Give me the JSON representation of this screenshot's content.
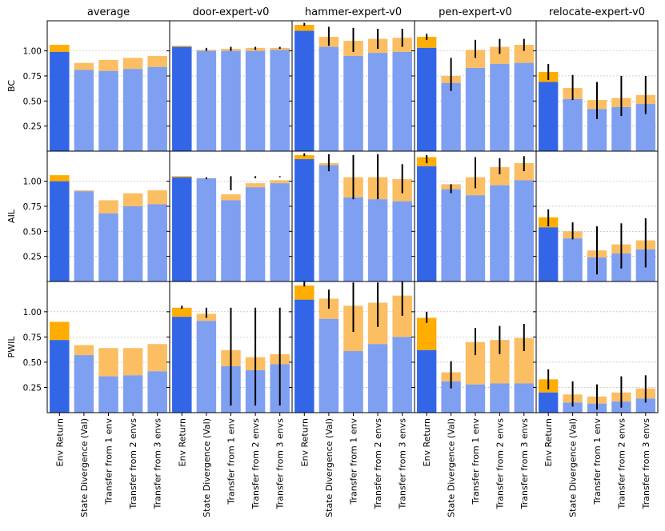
{
  "chart_data": {
    "type": "bar",
    "layout": "grid",
    "columns": [
      "average",
      "door-expert-v0",
      "hammer-expert-v0",
      "pen-expert-v0",
      "relocate-expert-v0"
    ],
    "rows": [
      "BC",
      "AIL",
      "PWIL"
    ],
    "categories": [
      "Env Return",
      "State Divergence (Val)",
      "Transfer from 1 env",
      "Transfer from 2 envs",
      "Transfer from 3 envs"
    ],
    "yticks": [
      0.25,
      0.5,
      0.75,
      1.0
    ],
    "ylim": [
      0,
      1.3
    ],
    "grid": true,
    "stacking": "bottom segment (blue) + top segment (orange) = bar total",
    "colors": {
      "env_bottom": "#3366e6",
      "env_top": "#ffad00",
      "other_bottom": "#7f9ff0",
      "other_top": "#fbbe63",
      "error_bar": "#000000"
    },
    "panels": [
      {
        "row": "BC",
        "column": "average",
        "bottom": [
          0.99,
          0.81,
          0.8,
          0.82,
          0.84
        ],
        "top": [
          1.06,
          0.88,
          0.91,
          0.93,
          0.95
        ],
        "error": [
          null,
          null,
          null,
          null,
          null
        ]
      },
      {
        "row": "BC",
        "column": "door-expert-v0",
        "bottom": [
          1.04,
          1.0,
          1.0,
          1.0,
          1.01
        ],
        "top": [
          1.05,
          1.01,
          1.02,
          1.03,
          1.03
        ],
        "error": [
          null,
          [
            1.0,
            1.03
          ],
          [
            1.0,
            1.04
          ],
          [
            1.01,
            1.04
          ],
          [
            1.02,
            1.04
          ]
        ]
      },
      {
        "row": "BC",
        "column": "hammer-expert-v0",
        "bottom": [
          1.2,
          1.04,
          0.95,
          0.98,
          0.99
        ],
        "top": [
          1.26,
          1.14,
          1.1,
          1.12,
          1.13
        ],
        "error": [
          [
            1.25,
            1.28
          ],
          [
            1.05,
            1.24
          ],
          [
            0.99,
            1.23
          ],
          [
            1.02,
            1.22
          ],
          [
            1.04,
            1.22
          ]
        ]
      },
      {
        "row": "BC",
        "column": "pen-expert-v0",
        "bottom": [
          1.03,
          0.68,
          0.83,
          0.87,
          0.88
        ],
        "top": [
          1.14,
          0.75,
          1.01,
          1.04,
          1.06
        ],
        "error": [
          [
            1.11,
            1.17
          ],
          [
            0.6,
            0.93
          ],
          [
            0.93,
            1.11
          ],
          [
            0.97,
            1.12
          ],
          [
            1.0,
            1.12
          ]
        ]
      },
      {
        "row": "BC",
        "column": "relocate-expert-v0",
        "bottom": [
          0.69,
          0.52,
          0.42,
          0.44,
          0.47
        ],
        "top": [
          0.79,
          0.63,
          0.51,
          0.53,
          0.56
        ],
        "error": [
          [
            0.71,
            0.87
          ],
          [
            0.51,
            0.76
          ],
          [
            0.32,
            0.69
          ],
          [
            0.35,
            0.75
          ],
          [
            0.37,
            0.75
          ]
        ]
      },
      {
        "row": "AIL",
        "column": "average",
        "bottom": [
          1.0,
          0.9,
          0.68,
          0.75,
          0.77
        ],
        "top": [
          1.06,
          0.91,
          0.81,
          0.88,
          0.91
        ],
        "error": [
          null,
          null,
          null,
          null,
          null
        ]
      },
      {
        "row": "AIL",
        "column": "door-expert-v0",
        "bottom": [
          1.04,
          1.03,
          0.81,
          0.94,
          0.98
        ],
        "top": [
          1.05,
          1.03,
          0.87,
          0.98,
          1.01
        ],
        "error": [
          null,
          [
            1.02,
            1.04
          ],
          [
            0.91,
            1.05
          ],
          [
            1.03,
            1.05
          ],
          [
            1.04,
            1.05
          ]
        ]
      },
      {
        "row": "AIL",
        "column": "hammer-expert-v0",
        "bottom": [
          1.22,
          1.16,
          0.84,
          0.82,
          0.8
        ],
        "top": [
          1.26,
          1.18,
          1.04,
          1.04,
          1.02
        ],
        "error": [
          [
            1.25,
            1.28
          ],
          [
            1.1,
            1.27
          ],
          [
            0.82,
            1.26
          ],
          [
            0.82,
            1.27
          ],
          [
            0.88,
            1.17
          ]
        ]
      },
      {
        "row": "AIL",
        "column": "pen-expert-v0",
        "bottom": [
          1.15,
          0.92,
          0.86,
          0.96,
          1.01
        ],
        "top": [
          1.24,
          0.97,
          1.04,
          1.14,
          1.18
        ],
        "error": [
          [
            1.18,
            1.26
          ],
          [
            0.88,
            0.97
          ],
          [
            0.93,
            1.24
          ],
          [
            1.07,
            1.23
          ],
          [
            1.1,
            1.25
          ]
        ]
      },
      {
        "row": "AIL",
        "column": "relocate-expert-v0",
        "bottom": [
          0.54,
          0.43,
          0.24,
          0.28,
          0.32
        ],
        "top": [
          0.64,
          0.5,
          0.31,
          0.37,
          0.41
        ],
        "error": [
          [
            0.55,
            0.72
          ],
          [
            0.42,
            0.59
          ],
          [
            0.07,
            0.55
          ],
          [
            0.13,
            0.58
          ],
          [
            0.14,
            0.63
          ]
        ]
      },
      {
        "row": "PWIL",
        "column": "average",
        "bottom": [
          0.72,
          0.57,
          0.36,
          0.37,
          0.41
        ],
        "top": [
          0.9,
          0.67,
          0.64,
          0.64,
          0.68
        ],
        "error": [
          null,
          null,
          null,
          null,
          null
        ]
      },
      {
        "row": "PWIL",
        "column": "door-expert-v0",
        "bottom": [
          0.95,
          0.91,
          0.46,
          0.42,
          0.48
        ],
        "top": [
          1.04,
          0.98,
          0.62,
          0.55,
          0.58
        ],
        "error": [
          [
            1.03,
            1.06
          ],
          [
            0.94,
            1.04
          ],
          [
            0.07,
            1.04
          ],
          [
            0.07,
            1.04
          ],
          [
            0.07,
            1.04
          ]
        ]
      },
      {
        "row": "PWIL",
        "column": "hammer-expert-v0",
        "bottom": [
          1.12,
          0.93,
          0.61,
          0.68,
          0.75
        ],
        "top": [
          1.26,
          1.13,
          1.06,
          1.09,
          1.16
        ],
        "error": [
          [
            1.25,
            1.3
          ],
          [
            1.03,
            1.22
          ],
          [
            0.8,
            1.29
          ],
          [
            0.85,
            1.29
          ],
          [
            0.96,
            1.3
          ]
        ]
      },
      {
        "row": "PWIL",
        "column": "pen-expert-v0",
        "bottom": [
          0.62,
          0.31,
          0.28,
          0.29,
          0.29
        ],
        "top": [
          0.94,
          0.4,
          0.7,
          0.72,
          0.74
        ],
        "error": [
          [
            0.89,
            1.0
          ],
          [
            0.24,
            0.51
          ],
          [
            0.57,
            0.84
          ],
          [
            0.58,
            0.86
          ],
          [
            0.61,
            0.88
          ]
        ]
      },
      {
        "row": "PWIL",
        "column": "relocate-expert-v0",
        "bottom": [
          0.2,
          0.1,
          0.09,
          0.11,
          0.14
        ],
        "top": [
          0.33,
          0.18,
          0.16,
          0.2,
          0.24
        ],
        "error": [
          [
            0.23,
            0.43
          ],
          [
            0.06,
            0.31
          ],
          [
            0.03,
            0.28
          ],
          [
            0.05,
            0.36
          ],
          [
            0.1,
            0.37
          ]
        ]
      }
    ]
  }
}
